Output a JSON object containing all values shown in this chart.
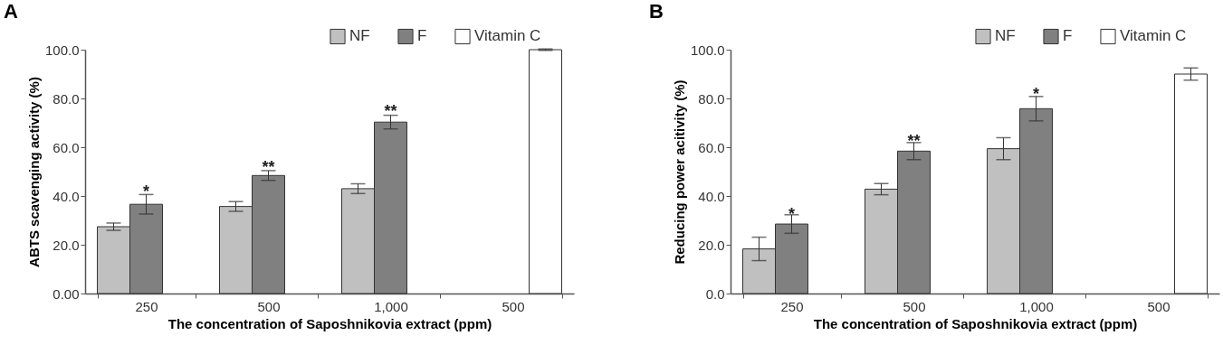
{
  "chart_data": [
    {
      "type": "bar",
      "title": "A",
      "xlabel": "The concentration of Saposhnikovia extract (ppm)",
      "ylabel": "ABTS scavenging activity (%)",
      "categories": [
        "250",
        "500",
        "1,000",
        "500"
      ],
      "series": [
        {
          "name": "NF",
          "color": "#c0c0c0",
          "values": [
            27.4,
            35.7,
            43,
            null
          ],
          "errors": [
            1.5,
            2,
            2,
            null
          ]
        },
        {
          "name": "F",
          "color": "#808080",
          "values": [
            36.6,
            48.4,
            70.3,
            null
          ],
          "errors": [
            4,
            2,
            2.8,
            null
          ]
        },
        {
          "name": "Vitamin C",
          "color": "#ffffff",
          "values": [
            null,
            null,
            null,
            100
          ],
          "errors": [
            null,
            null,
            null,
            0.3
          ]
        }
      ],
      "ylim": [
        0,
        100
      ],
      "yticks": [
        {
          "value": 0,
          "label": "0.00"
        },
        {
          "value": 20,
          "label": "20.0"
        },
        {
          "value": 40,
          "label": "40.0"
        },
        {
          "value": 60,
          "label": "60.0"
        },
        {
          "value": 80,
          "label": "80.0"
        },
        {
          "value": 100,
          "label": "100.0"
        }
      ],
      "annotations": [
        {
          "text": "*",
          "x": "250",
          "y": 41
        },
        {
          "text": "**",
          "x": "500",
          "y": 51
        },
        {
          "text": "**",
          "x": "1,000",
          "y": 74
        }
      ],
      "grid": false,
      "legend": "top right"
    },
    {
      "type": "bar",
      "title": "B",
      "xlabel": "The concentration of Saposhnikovia extract (ppm)",
      "ylabel": "Reducing power acitivity (%)",
      "categories": [
        "250",
        "500",
        "1,000",
        "500"
      ],
      "series": [
        {
          "name": "NF",
          "color": "#c0c0c0",
          "values": [
            18.3,
            42.8,
            59.4,
            null
          ],
          "errors": [
            4.8,
            2.3,
            4.5,
            null
          ]
        },
        {
          "name": "F",
          "color": "#808080",
          "values": [
            28.5,
            58.4,
            75.8,
            null
          ],
          "errors": [
            3.8,
            3.5,
            5,
            null
          ]
        },
        {
          "name": "Vitamin C",
          "color": "#ffffff",
          "values": [
            null,
            null,
            null,
            90
          ],
          "errors": [
            null,
            null,
            null,
            2.5
          ]
        }
      ],
      "ylim": [
        0,
        100
      ],
      "yticks": [
        {
          "value": 0,
          "label": "0.0"
        },
        {
          "value": 20,
          "label": "20.0"
        },
        {
          "value": 40,
          "label": "40.0"
        },
        {
          "value": 60,
          "label": "60.0"
        },
        {
          "value": 80,
          "label": "80.0"
        },
        {
          "value": 100,
          "label": "100.0"
        }
      ],
      "annotations": [
        {
          "text": "*",
          "x": "250",
          "y": 32
        },
        {
          "text": "**",
          "x": "500",
          "y": 62
        },
        {
          "text": "*",
          "x": "1,000",
          "y": 81
        }
      ],
      "grid": false,
      "legend": "top right"
    }
  ]
}
